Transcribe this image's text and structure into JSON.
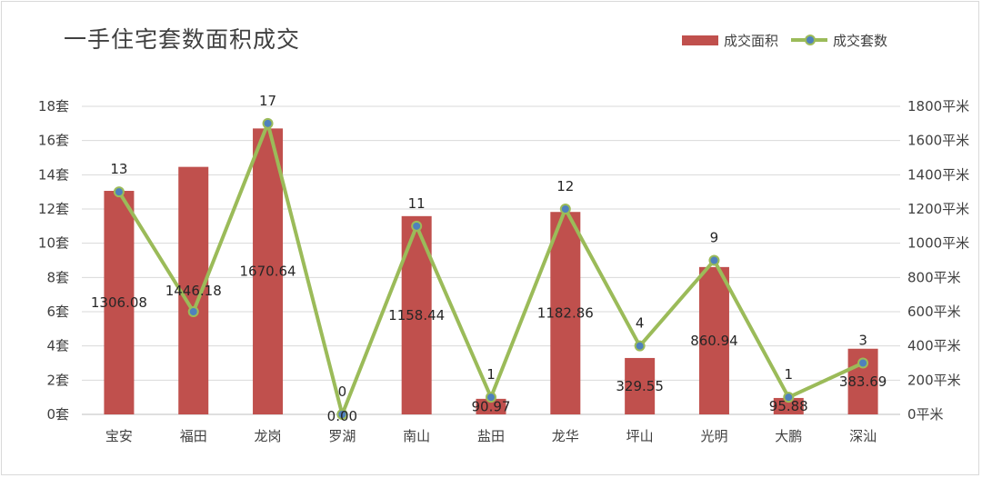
{
  "chart_data": {
    "type": "bar+line",
    "title": "一手住宅套数面积成交",
    "categories": [
      "宝安",
      "福田",
      "龙岗",
      "罗湖",
      "南山",
      "盐田",
      "龙华",
      "坪山",
      "光明",
      "大鹏",
      "深汕"
    ],
    "series": [
      {
        "name": "成交面积",
        "type": "bar",
        "axis": "right",
        "color": "#c0504d",
        "values": [
          1306.08,
          1446.18,
          1670.64,
          0.0,
          1158.44,
          90.97,
          1182.86,
          329.55,
          860.94,
          95.88,
          383.69
        ],
        "labels": [
          "1306.08",
          "1446.18",
          "1670.64",
          "0.00",
          "1158.44",
          "90.97",
          "1182.86",
          "329.55",
          "860.94",
          "95.88",
          "383.69"
        ]
      },
      {
        "name": "成交套数",
        "type": "line",
        "axis": "left",
        "color": "#9bbb59",
        "marker_color": "#4f81bd",
        "values": [
          13,
          6,
          17,
          0,
          11,
          1,
          12,
          4,
          9,
          1,
          3
        ],
        "labels": [
          "13",
          "",
          "17",
          "0",
          "11",
          "1",
          "12",
          "4",
          "9",
          "1",
          "3"
        ]
      }
    ],
    "y_left": {
      "ylim": [
        0,
        18
      ],
      "ticks": [
        "0套",
        "2套",
        "4套",
        "6套",
        "8套",
        "10套",
        "12套",
        "14套",
        "16套",
        "18套"
      ]
    },
    "y_right": {
      "ylim": [
        0,
        1800
      ],
      "ticks": [
        "0平米",
        "200平米",
        "400平米",
        "600平米",
        "800平米",
        "1000平米",
        "1200平米",
        "1400平米",
        "1600平米",
        "1800平米"
      ]
    },
    "grid": true,
    "legend_position": "top-right"
  }
}
